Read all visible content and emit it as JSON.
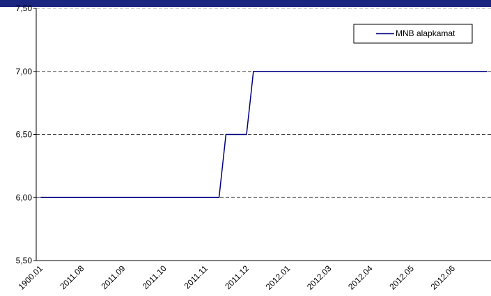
{
  "chart_data": {
    "type": "line",
    "categories": [
      "1900.01",
      null,
      null,
      null,
      null,
      null,
      "2011.08",
      null,
      null,
      null,
      null,
      null,
      "2011.09",
      null,
      null,
      null,
      null,
      null,
      "2011.10",
      null,
      null,
      null,
      null,
      null,
      "2011.11",
      null,
      null,
      null,
      null,
      null,
      "2011.12",
      null,
      null,
      null,
      null,
      null,
      "2012.01",
      null,
      null,
      null,
      null,
      null,
      "2012.03",
      null,
      null,
      null,
      null,
      null,
      "2012.04",
      null,
      null,
      null,
      null,
      null,
      "2012.05",
      null,
      null,
      null,
      null,
      null,
      "2012.06",
      null,
      null,
      null,
      null,
      null
    ],
    "series": [
      {
        "name": "MNB alapkamat",
        "color": "#000080",
        "values": [
          6,
          6,
          6,
          6,
          6,
          6,
          6,
          6,
          6,
          6,
          6,
          6,
          6,
          6,
          6,
          6,
          6,
          6,
          6,
          6,
          6,
          6,
          6,
          6,
          6,
          6,
          6,
          6.5,
          6.5,
          6.5,
          6.5,
          7,
          7,
          7,
          7,
          7,
          7,
          7,
          7,
          7,
          7,
          7,
          7,
          7,
          7,
          7,
          7,
          7,
          7,
          7,
          7,
          7,
          7,
          7,
          7,
          7,
          7,
          7,
          7,
          7,
          7,
          7,
          7,
          7,
          7,
          7
        ]
      }
    ],
    "ylim": [
      5.5,
      7.5
    ],
    "yticks": [
      {
        "value": 5.5,
        "label": "5,50"
      },
      {
        "value": 6,
        "label": "6,00"
      },
      {
        "value": 6.5,
        "label": "6,50"
      },
      {
        "value": 7,
        "label": "7,00"
      },
      {
        "value": 7.5,
        "label": "7,50"
      }
    ],
    "grid": true,
    "legend": "upper right"
  }
}
